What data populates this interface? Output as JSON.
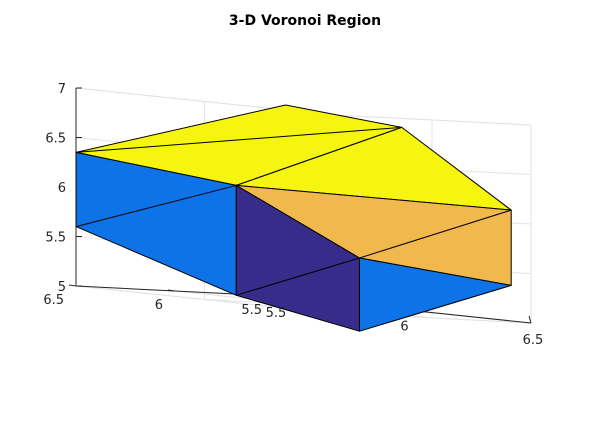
{
  "chart_data": {
    "type": "3d-patch",
    "title": "3-D Voronoi Region",
    "xlabel": "",
    "ylabel": "",
    "zlabel": "",
    "xlim": [
      5.5,
      6.5
    ],
    "ylim": [
      5.5,
      6.5
    ],
    "zlim": [
      5,
      7
    ],
    "x_ticks": [
      "5.5",
      "6",
      "6.5"
    ],
    "y_ticks": [
      "5.5",
      "6",
      "6.5"
    ],
    "z_ticks": [
      "5",
      "5.5",
      "6",
      "6.5",
      "7"
    ],
    "grid": true,
    "view": "3-D perspective, default azimuth/elevation",
    "colors": {
      "top": "#f5f50f",
      "front": "#f0b84d",
      "side": "#0d73e6",
      "dark": "#372c8a"
    },
    "vertices": {
      "A": [
        5.5,
        6.5,
        6.35
      ],
      "B": [
        5.5,
        6.5,
        5.6
      ],
      "C": [
        5.8,
        6.08,
        6.14
      ],
      "D": [
        5.8,
        6.08,
        5.03
      ],
      "E": [
        6.01,
        5.73,
        5.5
      ],
      "F": [
        6.01,
        5.73,
        4.76
      ],
      "G": [
        6.5,
        5.6,
        6.13
      ],
      "H": [
        6.5,
        5.6,
        5.37
      ],
      "I": [
        6.29,
        5.88,
        6.88
      ],
      "J": [
        6.1,
        6.22,
        7.02
      ]
    },
    "faces": [
      {
        "vertices": [
          "A",
          "J",
          "I",
          "C"
        ],
        "color": "top",
        "diagonals": [
          [
            "A",
            "I"
          ]
        ]
      },
      {
        "vertices": [
          "C",
          "I",
          "G"
        ],
        "color": "top",
        "diagonals": []
      },
      {
        "vertices": [
          "C",
          "G",
          "H",
          "E"
        ],
        "color": "front",
        "diagonals": [
          [
            "E",
            "G"
          ]
        ]
      },
      {
        "vertices": [
          "A",
          "C",
          "D",
          "B"
        ],
        "color": "side",
        "diagonals": [
          [
            "B",
            "C"
          ]
        ]
      },
      {
        "vertices": [
          "C",
          "E",
          "F",
          "D"
        ],
        "color": "dark",
        "diagonals": [
          [
            "D",
            "E"
          ]
        ]
      },
      {
        "vertices": [
          "E",
          "H",
          "F"
        ],
        "color": "side",
        "diagonals": []
      }
    ]
  }
}
